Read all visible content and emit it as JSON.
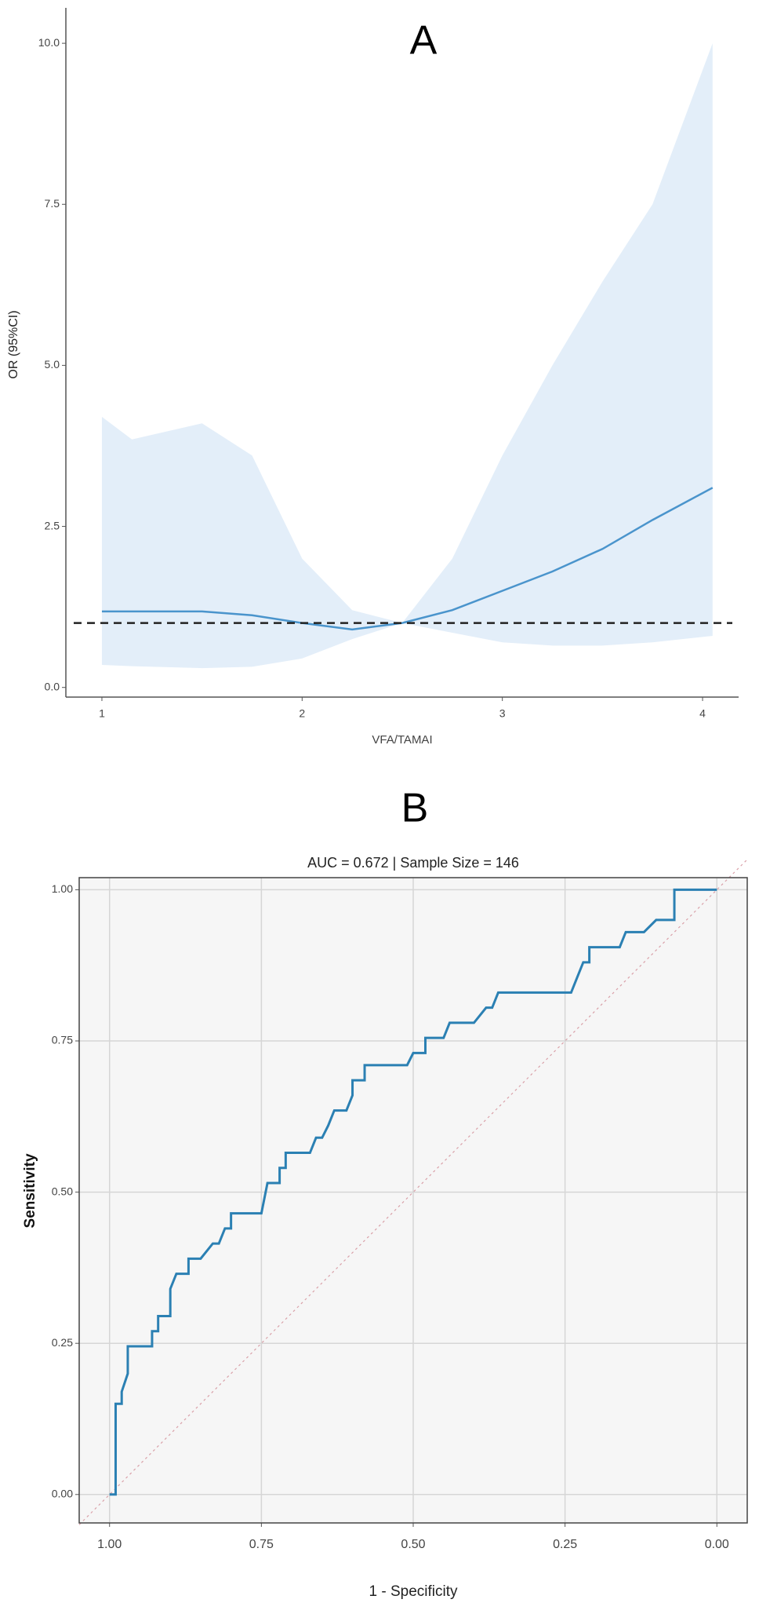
{
  "chart_data": [
    {
      "type": "line",
      "annotation": "A",
      "xlabel": "VFA/TAMAI",
      "ylabel": "OR (95%CI)",
      "x": [
        1,
        1.15,
        1.5,
        1.75,
        2,
        2.25,
        2.5,
        2.75,
        3,
        3.25,
        3.5,
        3.75,
        4.05
      ],
      "values": [
        1.18,
        1.18,
        1.18,
        1.12,
        1.0,
        0.9,
        1.0,
        1.2,
        1.5,
        1.8,
        2.15,
        2.6,
        3.1
      ],
      "upper": [
        4.2,
        3.85,
        4.1,
        3.6,
        2.0,
        1.2,
        1.0,
        2.0,
        3.6,
        5.0,
        6.3,
        7.5,
        10.0
      ],
      "lower": [
        0.35,
        0.33,
        0.3,
        0.32,
        0.45,
        0.75,
        1.0,
        0.85,
        0.7,
        0.65,
        0.65,
        0.7,
        0.8
      ],
      "color": "#4a94cc",
      "band_color": "#e3eef9",
      "hline": 1,
      "xlim": [
        0.82,
        4.18
      ],
      "ylim": [
        -0.15,
        10.55
      ],
      "xticks": [
        1,
        2,
        3,
        4
      ],
      "yticks": [
        {
          "value": 0,
          "label": "0.0"
        },
        {
          "value": 2.5,
          "label": "2.5"
        },
        {
          "value": 5,
          "label": "5.0"
        },
        {
          "value": 7.5,
          "label": "7.5"
        },
        {
          "value": 10,
          "label": "10.0"
        }
      ],
      "grid": false
    },
    {
      "type": "roc",
      "annotation": "B",
      "title": "AUC = 0.672 | Sample Size = 146",
      "xlabel": "1 - Specificity",
      "ylabel": "Sensitivity",
      "x": [
        1.0,
        0.99,
        0.99,
        0.98,
        0.98,
        0.97,
        0.97,
        0.93,
        0.93,
        0.92,
        0.92,
        0.9,
        0.9,
        0.89,
        0.87,
        0.87,
        0.85,
        0.83,
        0.82,
        0.81,
        0.8,
        0.8,
        0.75,
        0.74,
        0.72,
        0.72,
        0.71,
        0.71,
        0.67,
        0.66,
        0.65,
        0.64,
        0.63,
        0.61,
        0.6,
        0.6,
        0.58,
        0.58,
        0.51,
        0.5,
        0.48,
        0.48,
        0.45,
        0.44,
        0.4,
        0.38,
        0.37,
        0.36,
        0.24,
        0.23,
        0.22,
        0.21,
        0.21,
        0.16,
        0.15,
        0.12,
        0.1,
        0.07,
        0.07,
        0.0
      ],
      "values": [
        0,
        0,
        0.15,
        0.15,
        0.17,
        0.2,
        0.245,
        0.245,
        0.27,
        0.27,
        0.295,
        0.295,
        0.34,
        0.365,
        0.365,
        0.39,
        0.39,
        0.415,
        0.415,
        0.44,
        0.44,
        0.465,
        0.465,
        0.515,
        0.515,
        0.54,
        0.54,
        0.565,
        0.565,
        0.59,
        0.59,
        0.61,
        0.635,
        0.635,
        0.66,
        0.685,
        0.685,
        0.71,
        0.71,
        0.73,
        0.73,
        0.755,
        0.755,
        0.78,
        0.78,
        0.805,
        0.805,
        0.83,
        0.83,
        0.855,
        0.88,
        0.88,
        0.905,
        0.905,
        0.93,
        0.93,
        0.95,
        0.95,
        1.0,
        1.0
      ],
      "color": "#2b80b3",
      "diagonal": true,
      "xlim": [
        1.05,
        -0.05
      ],
      "ylim": [
        -0.047,
        1.02
      ],
      "xticks": [
        {
          "value": 1,
          "label": "1.00"
        },
        {
          "value": 0.75,
          "label": "0.75"
        },
        {
          "value": 0.5,
          "label": "0.50"
        },
        {
          "value": 0.25,
          "label": "0.25"
        },
        {
          "value": 0,
          "label": "0.00"
        }
      ],
      "yticks": [
        {
          "value": 0,
          "label": "0.00"
        },
        {
          "value": 0.25,
          "label": "0.25"
        },
        {
          "value": 0.5,
          "label": "0.50"
        },
        {
          "value": 0.75,
          "label": "0.75"
        },
        {
          "value": 1,
          "label": "1.00"
        }
      ],
      "grid": true
    }
  ]
}
